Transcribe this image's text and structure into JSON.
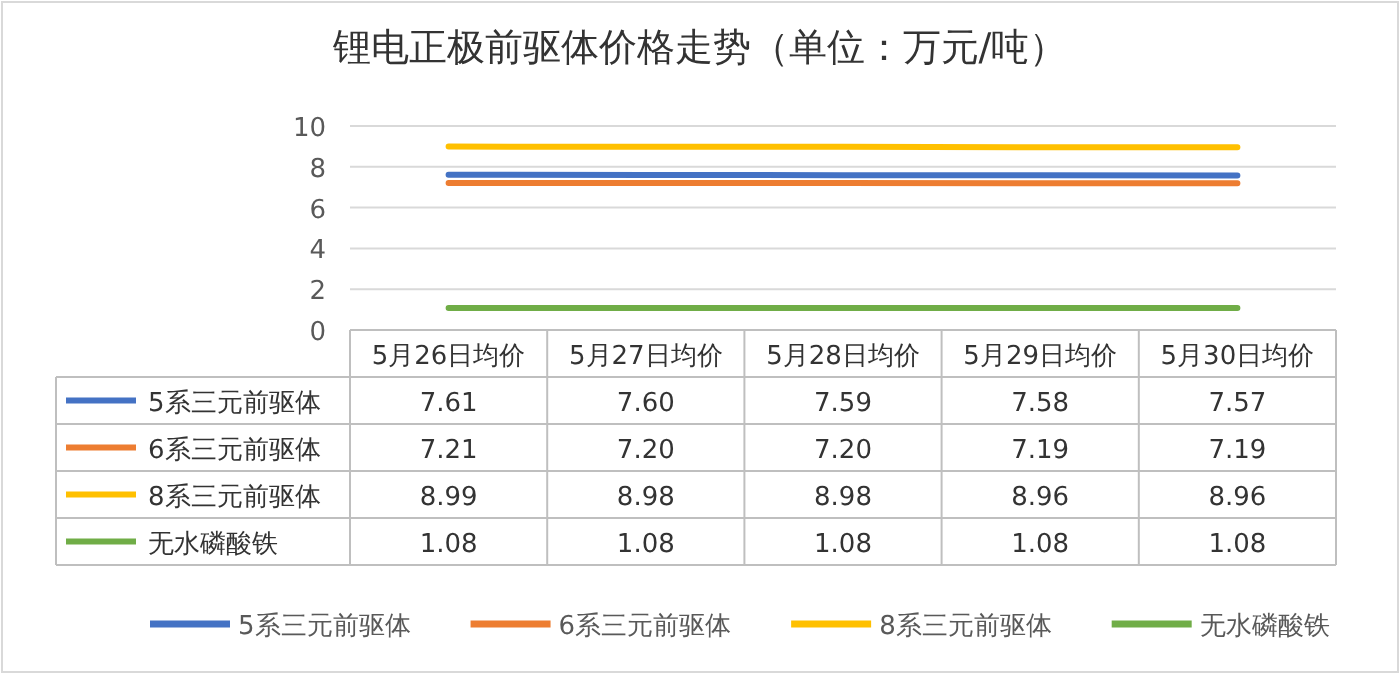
{
  "chart_data": {
    "type": "line",
    "title": "锂电正极前驱体价格走势（单位：万元/吨）",
    "categories": [
      "5月26日均价",
      "5月27日均价",
      "5月28日均价",
      "5月29日均价",
      "5月30日均价"
    ],
    "series": [
      {
        "name": "5系三元前驱体",
        "color": "#4472c4",
        "values": [
          7.61,
          7.6,
          7.59,
          7.58,
          7.57
        ],
        "value_labels": [
          "7.61",
          "7.60",
          "7.59",
          "7.58",
          "7.57"
        ]
      },
      {
        "name": "6系三元前驱体",
        "color": "#ed7d31",
        "values": [
          7.21,
          7.2,
          7.2,
          7.19,
          7.19
        ],
        "value_labels": [
          "7.21",
          "7.20",
          "7.20",
          "7.19",
          "7.19"
        ]
      },
      {
        "name": "8系三元前驱体",
        "color": "#ffc000",
        "values": [
          8.99,
          8.98,
          8.98,
          8.96,
          8.96
        ],
        "value_labels": [
          "8.99",
          "8.98",
          "8.98",
          "8.96",
          "8.96"
        ]
      },
      {
        "name": "无水磷酸铁",
        "color": "#70ad47",
        "values": [
          1.08,
          1.08,
          1.08,
          1.08,
          1.08
        ],
        "value_labels": [
          "1.08",
          "1.08",
          "1.08",
          "1.08",
          "1.08"
        ]
      }
    ],
    "ylim": [
      0,
      10
    ],
    "yticks": [
      0,
      2,
      4,
      6,
      8,
      10
    ],
    "grid": "y",
    "legend": "bottom"
  }
}
